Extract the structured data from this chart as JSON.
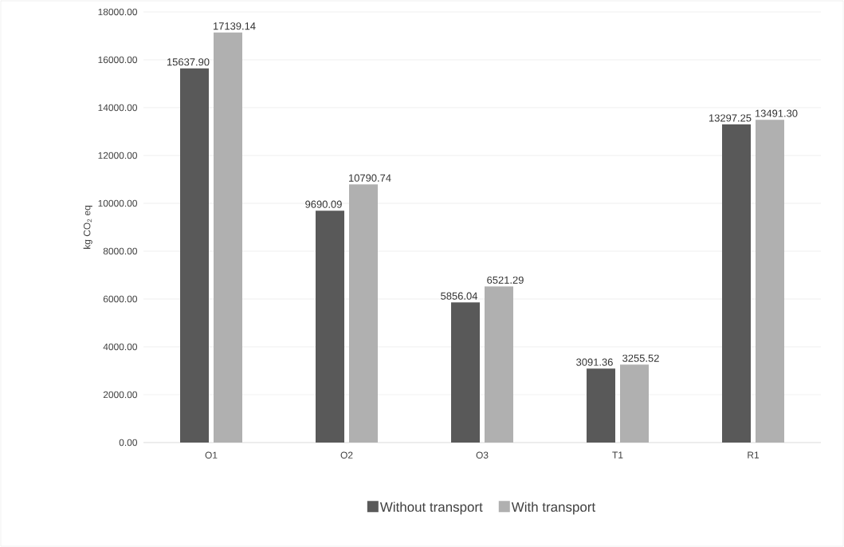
{
  "chart_data": {
    "type": "bar",
    "categories": [
      "O1",
      "O2",
      "O3",
      "T1",
      "R1"
    ],
    "ylabel": "kg CO$_{2}$ eq",
    "series": [
      {
        "name": "Without transport",
        "color": "#595959",
        "values": [
          15637.9,
          9690.09,
          5856.04,
          3091.36,
          13297.25
        ],
        "value_labels": [
          "15637.90",
          "9690.09",
          "5856.04",
          "3091.36",
          "13297.25"
        ]
      },
      {
        "name": "With transport",
        "color": "#b0b0b0",
        "values": [
          17139.14,
          10790.74,
          6521.29,
          3255.52,
          13491.3
        ],
        "value_labels": [
          "17139.14",
          "10790.74",
          "6521.29",
          "3255.52",
          "13491.30"
        ]
      }
    ],
    "ylim": [
      0,
      18000
    ],
    "yticks": [
      {
        "value": 0,
        "label": "0.00"
      },
      {
        "value": 2000,
        "label": "2000.00"
      },
      {
        "value": 4000,
        "label": "4000.00"
      },
      {
        "value": 6000,
        "label": "6000.00"
      },
      {
        "value": 8000,
        "label": "8000.00"
      },
      {
        "value": 10000,
        "label": "10000.00"
      },
      {
        "value": 12000,
        "label": "12000.00"
      },
      {
        "value": 14000,
        "label": "14000.00"
      },
      {
        "value": 16000,
        "label": "16000.00"
      },
      {
        "value": 18000,
        "label": "18000.00"
      }
    ],
    "grid": "y",
    "legend": "bottom"
  }
}
